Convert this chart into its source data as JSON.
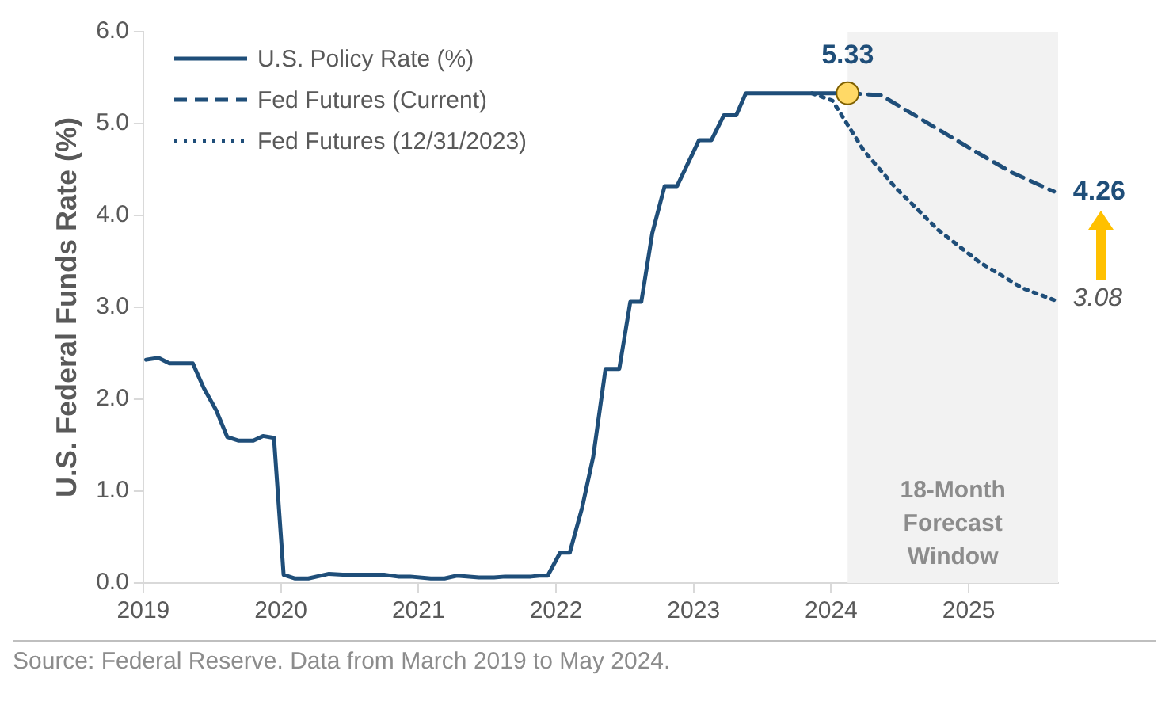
{
  "chart_data": {
    "type": "line",
    "ylabel": "U.S. Federal Funds Rate (%)",
    "xlim": [
      2019,
      2025.65
    ],
    "xticks": [
      2019,
      2020,
      2021,
      2022,
      2023,
      2024,
      2025
    ],
    "ylim": [
      0,
      6
    ],
    "yticks": [
      {
        "value": 0,
        "label": "0.0"
      },
      {
        "value": 1,
        "label": "1.0"
      },
      {
        "value": 2,
        "label": "2.0"
      },
      {
        "value": 3,
        "label": "3.0"
      },
      {
        "value": 4,
        "label": "4.0"
      },
      {
        "value": 5,
        "label": "5.0"
      },
      {
        "value": 6,
        "label": "6.0"
      }
    ],
    "grid": false,
    "legend": "top left",
    "marker": "none",
    "bands": [
      {
        "axis": "x",
        "from": 2024.12,
        "to": 2025.65,
        "label": "18-Month Forecast Window",
        "color": "#f2f2f2"
      }
    ],
    "annotations": [
      "Source: Federal Reserve. Data from March 2019 to May 2024."
    ],
    "series": [
      {
        "name": "U.S. Policy Rate (%)",
        "color": "#1f4e79",
        "line_style": "solid",
        "x": [
          2019.02,
          2019.11,
          2019.19,
          2019.36,
          2019.44,
          2019.53,
          2019.61,
          2019.69,
          2019.8,
          2019.87,
          2019.95,
          2020.02,
          2020.1,
          2020.2,
          2020.35,
          2020.45,
          2020.75,
          2020.85,
          2020.94,
          2021.09,
          2021.19,
          2021.28,
          2021.44,
          2021.55,
          2021.63,
          2021.82,
          2021.88,
          2021.94,
          2022.03,
          2022.1,
          2022.19,
          2022.27,
          2022.36,
          2022.46,
          2022.54,
          2022.62,
          2022.7,
          2022.79,
          2022.88,
          2023.04,
          2023.13,
          2023.22,
          2023.31,
          2023.38,
          2024.12
        ],
        "values": [
          2.43,
          2.45,
          2.39,
          2.39,
          2.12,
          1.88,
          1.59,
          1.55,
          1.55,
          1.6,
          1.58,
          0.09,
          0.05,
          0.05,
          0.1,
          0.09,
          0.09,
          0.07,
          0.07,
          0.05,
          0.05,
          0.08,
          0.06,
          0.06,
          0.07,
          0.07,
          0.08,
          0.08,
          0.33,
          0.33,
          0.82,
          1.37,
          2.33,
          2.33,
          3.06,
          3.06,
          3.81,
          4.32,
          4.32,
          4.82,
          4.82,
          5.09,
          5.09,
          5.33,
          5.33
        ]
      },
      {
        "name": "Fed Futures (Current)",
        "color": "#1f4e79",
        "line_style": "dashed",
        "x": [
          2024.12,
          2024.36,
          2024.63,
          2025.01,
          2025.31,
          2025.62
        ],
        "values": [
          5.33,
          5.31,
          5.07,
          4.73,
          4.47,
          4.26
        ],
        "value_labels": [
          null,
          null,
          null,
          null,
          null,
          "4.26"
        ]
      },
      {
        "name": "Fed Futures (12/31/2023)",
        "color": "#1f4e79",
        "line_style": "dotted",
        "x": [
          2023.86,
          2024.01,
          2024.24,
          2024.47,
          2024.78,
          2025.08,
          2025.39,
          2025.62
        ],
        "values": [
          5.33,
          5.25,
          4.7,
          4.3,
          3.84,
          3.49,
          3.21,
          3.08
        ],
        "value_labels": [
          null,
          null,
          null,
          null,
          null,
          null,
          null,
          "3.08"
        ]
      },
      {
        "type": "scatter",
        "marker": "circle",
        "color": "#ffd966",
        "x": [
          2024.12
        ],
        "values": [
          5.33
        ],
        "value_labels": [
          "5.33"
        ]
      }
    ]
  }
}
